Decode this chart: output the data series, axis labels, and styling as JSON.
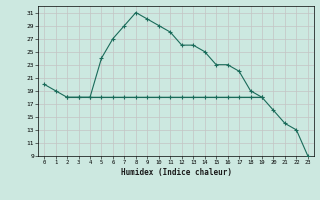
{
  "xlabel": "Humidex (Indice chaleur)",
  "background_color": "#cce8e0",
  "grid_color": "#c8c8c8",
  "line_color": "#1a6b5a",
  "line1_x": [
    0,
    1,
    2,
    3,
    4,
    5,
    6,
    7,
    8,
    9,
    10,
    11,
    12,
    13,
    14,
    15,
    16,
    17,
    18,
    19
  ],
  "line1_y": [
    20,
    19,
    18,
    18,
    18,
    24,
    27,
    29,
    31,
    30,
    29,
    28,
    26,
    26,
    25,
    23,
    23,
    22,
    19,
    18
  ],
  "line2_x": [
    2,
    3,
    4,
    5,
    6,
    7,
    8,
    9,
    10,
    11,
    12,
    13,
    14,
    15,
    16,
    17,
    18,
    19,
    20,
    21,
    22,
    23
  ],
  "line2_y": [
    18,
    18,
    18,
    18,
    18,
    18,
    18,
    18,
    18,
    18,
    18,
    18,
    18,
    18,
    18,
    18,
    18,
    18,
    16,
    14,
    13,
    9
  ],
  "line3_x": [
    2,
    19
  ],
  "line3_y": [
    18,
    18
  ],
  "ylim": [
    9,
    32
  ],
  "xlim": [
    -0.5,
    23.5
  ],
  "yticks": [
    9,
    11,
    13,
    15,
    17,
    19,
    21,
    23,
    25,
    27,
    29,
    31
  ],
  "xticks": [
    0,
    1,
    2,
    3,
    4,
    5,
    6,
    7,
    8,
    9,
    10,
    11,
    12,
    13,
    14,
    15,
    16,
    17,
    18,
    19,
    20,
    21,
    22,
    23
  ]
}
